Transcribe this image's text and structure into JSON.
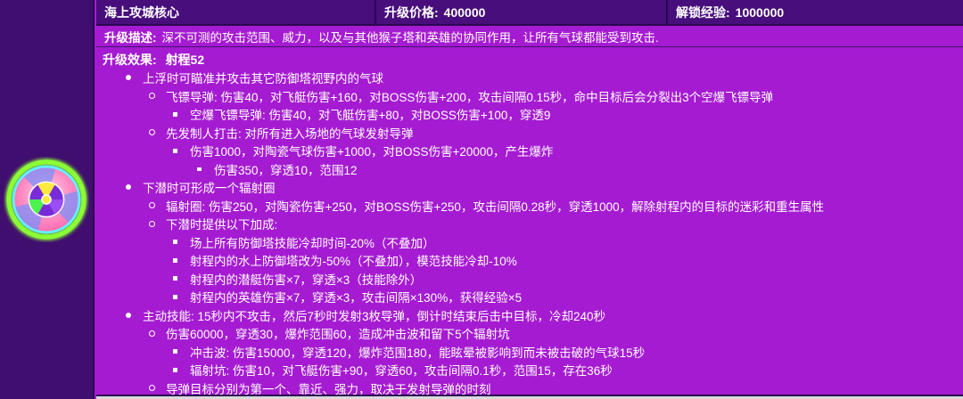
{
  "header": {
    "title": "海上攻城核心",
    "price_label": "升级价格:",
    "price_value": "400000",
    "xp_label": "解锁经验:",
    "xp_value": "1000000"
  },
  "description": {
    "label": "升级描述:",
    "text": "深不可测的攻击范围、威力，以及与其他猴子塔和英雄的协同作用，让所有气球都能受到攻击."
  },
  "effects": {
    "label": "升级效果:",
    "value": "射程52",
    "items": [
      {
        "level": 1,
        "text": "上浮时可瞄准并攻击其它防御塔视野内的气球"
      },
      {
        "level": 2,
        "text": "飞镖导弹: 伤害40，对飞艇伤害+160，对BOSS伤害+200，攻击间隔0.15秒，命中目标后会分裂出3个空爆飞镖导弹"
      },
      {
        "level": 3,
        "text": "空爆飞镖导弹: 伤害40，对飞艇伤害+80，对BOSS伤害+100，穿透9"
      },
      {
        "level": 2,
        "text": "先发制人打击: 对所有进入场地的气球发射导弹"
      },
      {
        "level": 3,
        "text": "伤害1000，对陶瓷气球伤害+1000，对BOSS伤害+20000，产生爆炸"
      },
      {
        "level": 4,
        "text": "伤害350，穿透10，范围12"
      },
      {
        "level": 1,
        "text": "下潜时可形成一个辐射圈"
      },
      {
        "level": 2,
        "text": "辐射圈: 伤害250，对陶瓷伤害+250，对BOSS伤害+250，攻击间隔0.28秒，穿透1000，解除射程内的目标的迷彩和重生属性"
      },
      {
        "level": 2,
        "text": "下潜时提供以下加成:"
      },
      {
        "level": 3,
        "text": "场上所有防御塔技能冷却时间-20%（不叠加）"
      },
      {
        "level": 3,
        "text": "射程内的水上防御塔改为-50%（不叠加），模范技能冷却-10%"
      },
      {
        "level": 3,
        "text": "射程内的潜艇伤害×7，穿透×3（技能除外）"
      },
      {
        "level": 3,
        "text": "射程内的英雄伤害×7，穿透×3，攻击间隔×130%，获得经验×5"
      },
      {
        "level": 1,
        "text": "主动技能: 15秒内不攻击，然后7秒时发射3枚导弹，倒计时结束后击中目标，冷却240秒"
      },
      {
        "level": 2,
        "text": "伤害60000，穿透30，爆炸范围60，造成冲击波和留下5个辐射坑"
      },
      {
        "level": 3,
        "text": "冲击波: 伤害15000，穿透120，爆炸范围180，能眩晕被影响到而未被击破的气球15秒"
      },
      {
        "level": 3,
        "text": "辐射坑: 伤害10，对飞艇伤害+90，穿透60，攻击间隔0.1秒，范围15，存在36秒"
      },
      {
        "level": 2,
        "text": "导弹目标分别为第一个、靠近、强力，取决于发射导弹的时刻"
      }
    ]
  },
  "icon": {
    "name": "energizer-core-tower-icon"
  },
  "colors": {
    "bright": "#a51bd2",
    "dark": "#470e7c",
    "leftcol": "#3f0e6e",
    "border": "#2a0850",
    "text": "#ffffff",
    "strip": "#d9dadc",
    "neon": "#8bff35"
  }
}
